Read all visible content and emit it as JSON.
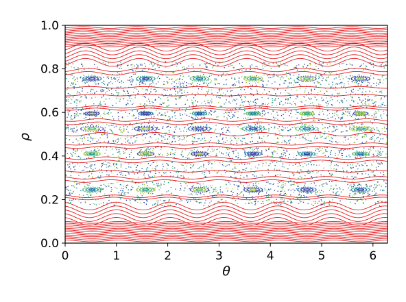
{
  "chart_data": {
    "type": "scatter",
    "subtype": "poincare-section",
    "xlabel": "θ",
    "ylabel": "ρ",
    "xlim": [
      0,
      6.283
    ],
    "ylim": [
      0,
      1.0
    ],
    "xticks": [
      0,
      1,
      2,
      3,
      4,
      5,
      6
    ],
    "xtick_labels": [
      "0",
      "1",
      "2",
      "3",
      "4",
      "5",
      "6"
    ],
    "yticks": [
      0.0,
      0.2,
      0.4,
      0.6,
      0.8,
      1.0
    ],
    "ytick_labels": [
      "0.0",
      "0.2",
      "0.4",
      "0.6",
      "0.8",
      "1.0"
    ],
    "grid": false,
    "colors": {
      "curves": "#e31a1c",
      "dots": [
        "#2c3e9e",
        "#1f77b4",
        "#2a9d8f",
        "#56b870",
        "#a0c83a",
        "#4a4aa8"
      ]
    },
    "curve_families": [
      {
        "rho_min": 0.01,
        "rho_max": 0.095,
        "count": 12,
        "amplitude": 0.004,
        "mode": 6
      },
      {
        "rho_min": 0.1,
        "rho_max": 0.17,
        "count": 5,
        "amplitude": 0.018,
        "mode": 6
      },
      {
        "rho_min": 0.205,
        "rho_max": 0.215,
        "count": 2,
        "amplitude": 0.006,
        "mode": 6
      },
      {
        "rho_min": 0.285,
        "rho_max": 0.3,
        "count": 2,
        "amplitude": 0.006,
        "mode": 6
      },
      {
        "rho_min": 0.33,
        "rho_max": 0.34,
        "count": 1,
        "amplitude": 0.004,
        "mode": 6
      },
      {
        "rho_min": 0.375,
        "rho_max": 0.39,
        "count": 2,
        "amplitude": 0.006,
        "mode": 6
      },
      {
        "rho_min": 0.44,
        "rho_max": 0.455,
        "count": 2,
        "amplitude": 0.005,
        "mode": 6
      },
      {
        "rho_min": 0.5,
        "rho_max": 0.51,
        "count": 1,
        "amplitude": 0.008,
        "mode": 6
      },
      {
        "rho_min": 0.55,
        "rho_max": 0.565,
        "count": 2,
        "amplitude": 0.006,
        "mode": 6
      },
      {
        "rho_min": 0.615,
        "rho_max": 0.625,
        "count": 2,
        "amplitude": 0.005,
        "mode": 6
      },
      {
        "rho_min": 0.68,
        "rho_max": 0.69,
        "count": 1,
        "amplitude": 0.004,
        "mode": 6
      },
      {
        "rho_min": 0.715,
        "rho_max": 0.72,
        "count": 1,
        "amplitude": 0.004,
        "mode": 6
      },
      {
        "rho_min": 0.78,
        "rho_max": 0.795,
        "count": 2,
        "amplitude": 0.008,
        "mode": 6
      },
      {
        "rho_min": 0.83,
        "rho_max": 0.9,
        "count": 5,
        "amplitude": 0.018,
        "mode": 6
      },
      {
        "rho_min": 0.905,
        "rho_max": 0.99,
        "count": 12,
        "amplitude": 0.004,
        "mode": 6
      }
    ],
    "chaotic_bands": [
      {
        "rho_min": 0.175,
        "rho_max": 0.205,
        "density": 220
      },
      {
        "rho_min": 0.215,
        "rho_max": 0.285,
        "density": 520
      },
      {
        "rho_min": 0.3,
        "rho_max": 0.375,
        "density": 460
      },
      {
        "rho_min": 0.39,
        "rho_max": 0.44,
        "density": 380
      },
      {
        "rho_min": 0.455,
        "rho_max": 0.5,
        "density": 320
      },
      {
        "rho_min": 0.51,
        "rho_max": 0.55,
        "density": 320
      },
      {
        "rho_min": 0.565,
        "rho_max": 0.615,
        "density": 380
      },
      {
        "rho_min": 0.625,
        "rho_max": 0.715,
        "density": 600
      },
      {
        "rho_min": 0.72,
        "rho_max": 0.78,
        "density": 460
      },
      {
        "rho_min": 0.795,
        "rho_max": 0.83,
        "density": 220
      }
    ],
    "island_chains": [
      {
        "rho": 0.245,
        "count": 6,
        "half_width": 0.18,
        "half_height": 0.012
      },
      {
        "rho": 0.41,
        "count": 6,
        "half_width": 0.16,
        "half_height": 0.01
      },
      {
        "rho": 0.525,
        "count": 6,
        "half_width": 0.22,
        "half_height": 0.012
      },
      {
        "rho": 0.595,
        "count": 6,
        "half_width": 0.14,
        "half_height": 0.009
      },
      {
        "rho": 0.755,
        "count": 6,
        "half_width": 0.18,
        "half_height": 0.012
      }
    ]
  }
}
